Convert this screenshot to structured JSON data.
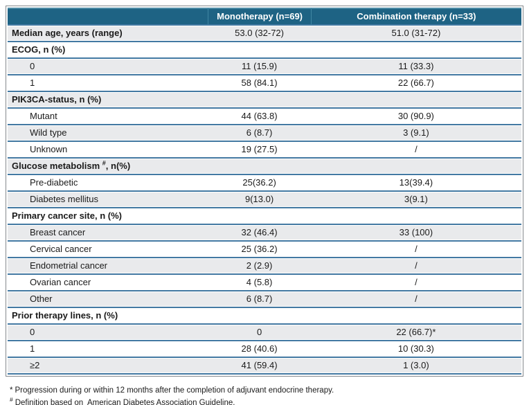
{
  "colors": {
    "header_bg": "#1E6384",
    "header_highlight": "#4E8CA6",
    "header_text": "#FFFFFF",
    "row_shaded_bg": "#E9EAEC",
    "row_border_blue": "#4379A2",
    "outer_border_gray": "#85898D",
    "text": "#1A1A1A"
  },
  "table": {
    "columns": [
      {
        "label": ""
      },
      {
        "label": "Monotherapy (n=69)"
      },
      {
        "label": "Combination therapy (n=33)"
      }
    ],
    "rows": [
      {
        "type": "lead",
        "label": "Median age, years (range)",
        "mono": "53.0 (32-72)",
        "combo": "51.0 (31-72)"
      },
      {
        "type": "section",
        "label": "ECOG, n (%)"
      },
      {
        "type": "item",
        "label": "0",
        "mono": "11 (15.9)",
        "combo": "11 (33.3)"
      },
      {
        "type": "item",
        "label": "1",
        "mono": "58 (84.1)",
        "combo": "22 (66.7)"
      },
      {
        "type": "section",
        "label": "PIK3CA-status, n (%)"
      },
      {
        "type": "item",
        "label": "Mutant",
        "mono": "44 (63.8)",
        "combo": "30 (90.9)"
      },
      {
        "type": "item",
        "label": "Wild type",
        "mono": "6 (8.7)",
        "combo": "3 (9.1)"
      },
      {
        "type": "item",
        "label": "Unknown",
        "mono": "19 (27.5)",
        "combo": "/"
      },
      {
        "type": "section",
        "label": "Glucose metabolism",
        "label_sup": "#",
        "label_rest": ", n(%)"
      },
      {
        "type": "item",
        "label": "Pre-diabetic",
        "mono": "25(36.2)",
        "combo": "13(39.4)"
      },
      {
        "type": "item",
        "label": "Diabetes mellitus",
        "mono": "9(13.0)",
        "combo": "3(9.1)"
      },
      {
        "type": "section",
        "label": "Primary cancer site, n (%)"
      },
      {
        "type": "item",
        "label": "Breast cancer",
        "mono": "32 (46.4)",
        "combo": "33 (100)"
      },
      {
        "type": "item",
        "label": "Cervical cancer",
        "mono": "25 (36.2)",
        "combo": "/"
      },
      {
        "type": "item",
        "label": "Endometrial cancer",
        "mono": "2 (2.9)",
        "combo": "/"
      },
      {
        "type": "item",
        "label": "Ovarian cancer",
        "mono": "4 (5.8)",
        "combo": "/"
      },
      {
        "type": "item",
        "label": "Other",
        "mono": "6 (8.7)",
        "combo": "/"
      },
      {
        "type": "section",
        "label": "Prior therapy lines, n (%)"
      },
      {
        "type": "item",
        "label": "0",
        "mono": "0",
        "combo": "22 (66.7)*"
      },
      {
        "type": "item",
        "label": "1",
        "mono": "28 (40.6)",
        "combo": "10 (30.3)"
      },
      {
        "type": "item",
        "label": "≥2",
        "mono": "41 (59.4)",
        "combo": "1 (3.0)"
      }
    ]
  },
  "footnotes": [
    {
      "marker": "*",
      "text": "Progression during or within 12 months after the completion of adjuvant endocrine therapy."
    },
    {
      "marker": "#",
      "text": "Definition based on  American Diabetes Association Guideline."
    }
  ]
}
